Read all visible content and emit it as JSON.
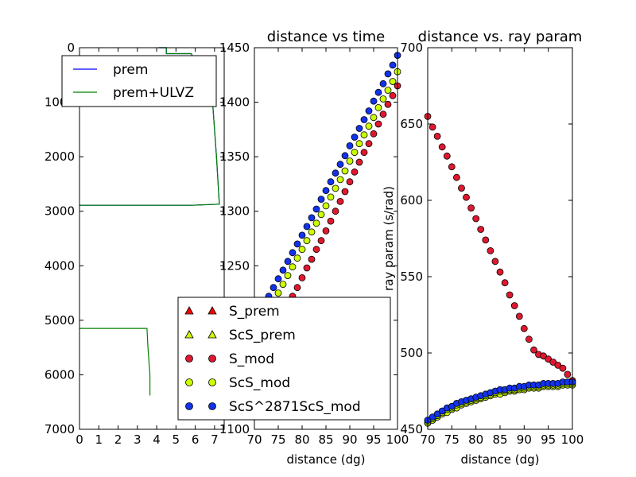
{
  "chart_data": [
    {
      "type": "line",
      "title": "",
      "xlabel": "",
      "ylabel": "",
      "xlim": [
        0,
        7.5
      ],
      "ylim": [
        7000,
        0
      ],
      "x_ticks": [
        "0",
        "1",
        "2",
        "3",
        "4",
        "5",
        "6",
        "7"
      ],
      "y_ticks": [
        "0",
        "1000",
        "2000",
        "3000",
        "4000",
        "5000",
        "6000",
        "7000"
      ],
      "legend_position": "top",
      "series": [
        {
          "name": "prem",
          "color": "#0000ff",
          "x": [
            4.1,
            4.5,
            4.5,
            5.8,
            6.9,
            7.1,
            7.25,
            5.8,
            0.0
          ],
          "y": [
            0,
            0,
            110,
            110,
            1000,
            2000,
            2870,
            2890,
            2890
          ]
        },
        {
          "name": "prem+ULVZ",
          "color": "#008000",
          "x": [
            4.1,
            4.5,
            4.5,
            5.8,
            6.9,
            7.1,
            7.25,
            5.8,
            0.0,
            null,
            0.0,
            3.5,
            3.55,
            3.65,
            3.65
          ],
          "y": [
            0,
            0,
            110,
            110,
            1000,
            2000,
            2870,
            2890,
            2890,
            null,
            5150,
            5150,
            5500,
            6000,
            6380
          ]
        }
      ]
    },
    {
      "type": "scatter",
      "title": "distance vs time",
      "xlabel": "distance (dg)",
      "ylabel": "",
      "xlim": [
        70,
        100
      ],
      "ylim": [
        1100,
        1450
      ],
      "x_ticks": [
        "70",
        "75",
        "80",
        "85",
        "90",
        "95",
        "100"
      ],
      "y_ticks": [
        "1100",
        "1150",
        "1200",
        "1250",
        "1300",
        "1350",
        "1400",
        "1450"
      ],
      "legend_position": "lower right",
      "legend": [
        {
          "name": "S_prem",
          "marker": "triangle",
          "color": "#ff0000"
        },
        {
          "name": "ScS_prem",
          "marker": "triangle",
          "color": "#ccff00"
        },
        {
          "name": "S_mod",
          "marker": "circle",
          "color": "#e0182f"
        },
        {
          "name": "ScS_mod",
          "marker": "circle",
          "color": "#ccff00"
        },
        {
          "name": "ScS^2871ScS_mod",
          "marker": "circle",
          "color": "#1133ee"
        }
      ],
      "series": [
        {
          "name": "S_mod",
          "color": "#e0182f",
          "x": [
            70,
            71,
            72,
            73,
            74,
            75,
            76,
            77,
            78,
            79,
            80,
            81,
            82,
            83,
            84,
            85,
            86,
            87,
            88,
            89,
            90,
            91,
            92,
            93,
            94,
            95,
            96,
            97,
            98,
            99,
            100
          ],
          "y": [
            1163,
            1170,
            1177,
            1184,
            1191,
            1199,
            1206,
            1214,
            1222,
            1230,
            1239,
            1248,
            1256,
            1265,
            1273,
            1282,
            1291,
            1300,
            1309,
            1318,
            1327,
            1336,
            1345,
            1354,
            1362,
            1371,
            1380,
            1389,
            1398,
            1406,
            1415
          ]
        },
        {
          "name": "ScS_mod",
          "color": "#ccff00",
          "x": [
            70,
            71,
            72,
            73,
            74,
            75,
            76,
            77,
            78,
            79,
            80,
            81,
            82,
            83,
            84,
            85,
            86,
            87,
            88,
            89,
            90,
            91,
            92,
            93,
            94,
            95,
            96,
            97,
            98,
            99,
            100
          ],
          "y": [
            1185,
            1193,
            1201,
            1209,
            1217,
            1225,
            1233,
            1241,
            1249,
            1257,
            1265,
            1273,
            1281,
            1289,
            1297,
            1305,
            1313,
            1321,
            1329,
            1337,
            1346,
            1354,
            1362,
            1370,
            1378,
            1386,
            1395,
            1403,
            1411,
            1419,
            1428
          ]
        },
        {
          "name": "ScS^2871ScS_mod",
          "color": "#1133ee",
          "x": [
            70,
            71,
            72,
            73,
            74,
            75,
            76,
            77,
            78,
            79,
            80,
            81,
            82,
            83,
            84,
            85,
            86,
            87,
            88,
            89,
            90,
            91,
            92,
            93,
            94,
            95,
            96,
            97,
            98,
            99,
            100
          ],
          "y": [
            1198,
            1206,
            1214,
            1222,
            1230,
            1238,
            1246,
            1254,
            1262,
            1270,
            1278,
            1286,
            1294,
            1302,
            1311,
            1319,
            1327,
            1335,
            1343,
            1351,
            1360,
            1368,
            1376,
            1384,
            1392,
            1401,
            1409,
            1417,
            1426,
            1434,
            1443
          ]
        }
      ]
    },
    {
      "type": "scatter",
      "title": "distance vs. ray param",
      "xlabel": "distance (dg)",
      "ylabel": "ray param (s/rad)",
      "xlim": [
        70,
        100
      ],
      "ylim": [
        450,
        700
      ],
      "x_ticks": [
        "70",
        "75",
        "80",
        "85",
        "90",
        "95",
        "100"
      ],
      "y_ticks": [
        "450",
        "500",
        "550",
        "600",
        "650",
        "700"
      ],
      "series": [
        {
          "name": "S_mod",
          "color": "#e0182f",
          "x": [
            70,
            71,
            72,
            73,
            74,
            75,
            76,
            77,
            78,
            79,
            80,
            81,
            82,
            83,
            84,
            85,
            86,
            87,
            88,
            89,
            90,
            91,
            92,
            93,
            94,
            95,
            96,
            97,
            98,
            99,
            100
          ],
          "y": [
            655,
            648,
            642,
            635,
            629,
            622,
            615,
            608,
            602,
            595,
            588,
            581,
            574,
            567,
            560,
            553,
            546,
            538,
            531,
            524,
            516,
            509,
            502,
            499,
            498,
            496,
            494,
            492,
            490,
            486,
            482
          ]
        },
        {
          "name": "ScS_prem",
          "color": "#ccff00",
          "x": [
            70,
            71,
            72,
            73,
            74,
            75,
            76,
            77,
            78,
            79,
            80,
            81,
            82,
            83,
            84,
            85,
            86,
            87,
            88,
            89,
            90,
            91,
            92,
            93,
            94,
            95,
            96,
            97,
            98,
            99,
            100
          ],
          "y": [
            454,
            456,
            458,
            460,
            461,
            463,
            464,
            466,
            467,
            468,
            469,
            470,
            471,
            472,
            473,
            473,
            474,
            475,
            475,
            476,
            476,
            477,
            477,
            477,
            478,
            478,
            478,
            478,
            479,
            479,
            479
          ]
        },
        {
          "name": "ScS_mod",
          "color": "#ccff00",
          "x": [
            70,
            71,
            72,
            73,
            74,
            75,
            76,
            77,
            78,
            79,
            80,
            81,
            82,
            83,
            84,
            85,
            86,
            87,
            88,
            89,
            90,
            91,
            92,
            93,
            94,
            95,
            96,
            97,
            98,
            99,
            100
          ],
          "y": [
            455,
            457,
            459,
            461,
            463,
            464,
            466,
            467,
            468,
            469,
            470,
            471,
            472,
            473,
            474,
            475,
            475,
            476,
            476,
            477,
            477,
            478,
            478,
            478,
            479,
            479,
            479,
            479,
            480,
            480,
            480
          ]
        },
        {
          "name": "ScS^2871ScS_mod",
          "color": "#1133ee",
          "x": [
            70,
            71,
            72,
            73,
            74,
            75,
            76,
            77,
            78,
            79,
            80,
            81,
            82,
            83,
            84,
            85,
            86,
            87,
            88,
            89,
            90,
            91,
            92,
            93,
            94,
            95,
            96,
            97,
            98,
            99,
            100
          ],
          "y": [
            456,
            458,
            460,
            462,
            464,
            465,
            467,
            468,
            469,
            470,
            471,
            472,
            473,
            474,
            475,
            476,
            476,
            477,
            477,
            478,
            478,
            479,
            479,
            479,
            480,
            480,
            480,
            480,
            481,
            481,
            481
          ]
        }
      ]
    }
  ]
}
